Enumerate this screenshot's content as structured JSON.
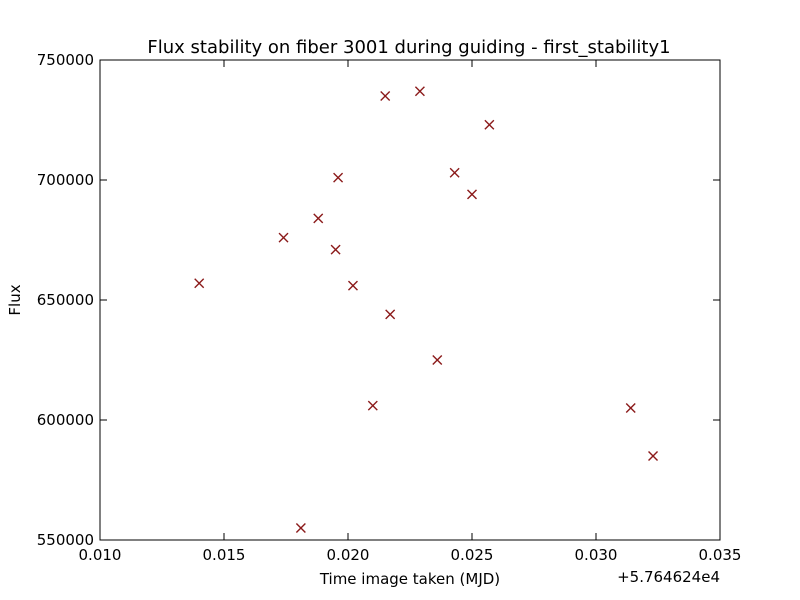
{
  "chart_data": {
    "type": "scatter",
    "title": "Flux stability on fiber 3001 during guiding - first_stability1",
    "xlabel": "Time image taken (MJD)",
    "ylabel": "Flux",
    "x_offset_label": "+5.764624e4",
    "xlim": [
      0.01,
      0.035
    ],
    "ylim": [
      550000,
      750000
    ],
    "x_ticks": [
      0.01,
      0.015,
      0.02,
      0.025,
      0.03,
      0.035
    ],
    "x_tick_labels": [
      "0.010",
      "0.015",
      "0.020",
      "0.025",
      "0.030",
      "0.035"
    ],
    "y_ticks": [
      550000,
      600000,
      650000,
      700000,
      750000
    ],
    "y_tick_labels": [
      "550000",
      "600000",
      "650000",
      "700000",
      "750000"
    ],
    "marker": "x",
    "marker_color": "#8b1a1a",
    "grid": false,
    "x": [
      0.014,
      0.0174,
      0.0181,
      0.0188,
      0.0195,
      0.0196,
      0.0202,
      0.021,
      0.0215,
      0.0217,
      0.0229,
      0.0236,
      0.0243,
      0.025,
      0.0257,
      0.0314,
      0.0323
    ],
    "y": [
      657000,
      676000,
      555000,
      684000,
      671000,
      701000,
      656000,
      606000,
      735000,
      644000,
      737000,
      625000,
      703000,
      694000,
      723000,
      605000,
      585000
    ]
  }
}
